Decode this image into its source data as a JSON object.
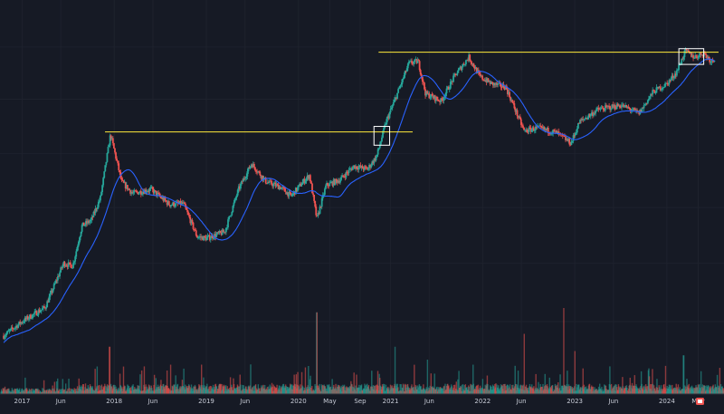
{
  "chart_data": {
    "type": "candlestick-log",
    "title": "",
    "xlabel": "",
    "ylabel": "",
    "x_ticks": [
      "2017",
      "Jun",
      "2018",
      "Jun",
      "2019",
      "Jun",
      "2020",
      "May",
      "Sep",
      "2021",
      "Jun",
      "2022",
      "Jun",
      "2023",
      "Jun",
      "2024",
      "May"
    ],
    "x_tick_dates": [
      2017.0,
      2017.42,
      2018.0,
      2018.42,
      2019.0,
      2019.42,
      2020.0,
      2020.34,
      2020.67,
      2021.0,
      2021.42,
      2022.0,
      2022.42,
      2023.0,
      2023.42,
      2024.0,
      2024.34
    ],
    "x_range": [
      2016.76,
      2024.62
    ],
    "y_range_log_usd": [
      700,
      140000
    ],
    "price_anchors": [
      [
        2016.8,
        800
      ],
      [
        2017.0,
        1000
      ],
      [
        2017.25,
        1250
      ],
      [
        2017.45,
        2500
      ],
      [
        2017.55,
        2400
      ],
      [
        2017.65,
        4500
      ],
      [
        2017.75,
        4900
      ],
      [
        2017.85,
        7000
      ],
      [
        2017.96,
        19000
      ],
      [
        2018.08,
        9000
      ],
      [
        2018.2,
        7500
      ],
      [
        2018.4,
        8000
      ],
      [
        2018.6,
        6300
      ],
      [
        2018.75,
        6400
      ],
      [
        2018.9,
        3800
      ],
      [
        2019.0,
        3700
      ],
      [
        2019.2,
        4100
      ],
      [
        2019.35,
        8000
      ],
      [
        2019.49,
        12000
      ],
      [
        2019.65,
        9000
      ],
      [
        2019.8,
        8300
      ],
      [
        2019.92,
        7200
      ],
      [
        2020.05,
        9000
      ],
      [
        2020.12,
        10000
      ],
      [
        2020.2,
        5000
      ],
      [
        2020.3,
        8500
      ],
      [
        2020.45,
        9300
      ],
      [
        2020.6,
        11500
      ],
      [
        2020.75,
        11000
      ],
      [
        2020.85,
        13500
      ],
      [
        2020.95,
        23000
      ],
      [
        2021.05,
        33000
      ],
      [
        2021.2,
        58000
      ],
      [
        2021.3,
        60000
      ],
      [
        2021.38,
        36000
      ],
      [
        2021.55,
        32000
      ],
      [
        2021.7,
        48000
      ],
      [
        2021.85,
        64000
      ],
      [
        2021.97,
        47000
      ],
      [
        2022.1,
        42000
      ],
      [
        2022.25,
        40000
      ],
      [
        2022.45,
        20000
      ],
      [
        2022.6,
        21000
      ],
      [
        2022.8,
        19500
      ],
      [
        2022.96,
        16500
      ],
      [
        2023.05,
        23000
      ],
      [
        2023.25,
        28000
      ],
      [
        2023.5,
        30000
      ],
      [
        2023.7,
        26500
      ],
      [
        2023.85,
        37000
      ],
      [
        2024.0,
        42000
      ],
      [
        2024.1,
        50000
      ],
      [
        2024.2,
        70000
      ],
      [
        2024.3,
        64000
      ],
      [
        2024.4,
        68000
      ],
      [
        2024.48,
        60000
      ],
      [
        2024.52,
        63000
      ]
    ],
    "moving_average_color": "#2962ff",
    "moving_average_window_bars": 50,
    "up_color": "#26a69a",
    "down_color": "#ef5350",
    "resistance_lines": [
      {
        "from": 2017.9,
        "to": 2021.24,
        "value": 19700,
        "color": "#ffeb3b"
      },
      {
        "from": 2020.87,
        "to": 2024.67,
        "value": 69000,
        "color": "#ffeb3b"
      }
    ],
    "highlight_boxes": [
      {
        "from": 2020.82,
        "to": 2020.99,
        "low": 16000,
        "high": 21500,
        "color": "#ffffff"
      },
      {
        "from": 2024.13,
        "to": 2024.4,
        "low": 57000,
        "high": 73000,
        "color": "#ffffff"
      }
    ],
    "volume_spikes": [
      {
        "x": 2017.95,
        "rel": 0.55
      },
      {
        "x": 2018.1,
        "rel": 0.32
      },
      {
        "x": 2020.2,
        "rel": 0.95
      },
      {
        "x": 2021.05,
        "rel": 0.55
      },
      {
        "x": 2021.4,
        "rel": 0.4
      },
      {
        "x": 2022.45,
        "rel": 0.7
      },
      {
        "x": 2022.88,
        "rel": 1.0
      },
      {
        "x": 2023.0,
        "rel": 0.5
      },
      {
        "x": 2024.18,
        "rel": 0.45
      }
    ]
  }
}
